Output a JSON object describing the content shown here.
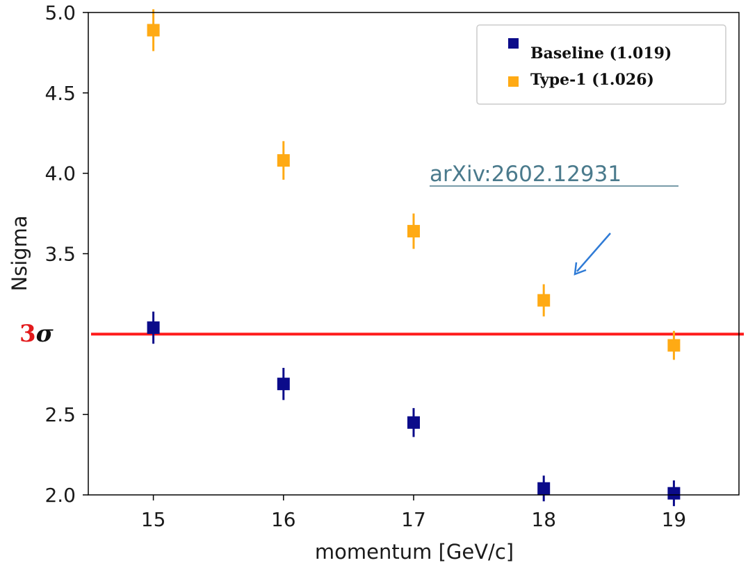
{
  "chart_data": {
    "type": "scatter",
    "title": "",
    "xlabel": "momentum [GeV/c]",
    "ylabel": "Nsigma",
    "xlim": [
      14.5,
      19.5
    ],
    "ylim": [
      2.0,
      5.0
    ],
    "xticks": [
      15,
      16,
      17,
      18,
      19
    ],
    "yticks": [
      "2.0",
      "2.5",
      "3.5",
      "4.0",
      "4.5",
      "5.0"
    ],
    "grid": false,
    "legend_position": "top-right",
    "x": [
      15,
      16,
      17,
      18,
      19
    ],
    "series": [
      {
        "name": "Baseline (1.019)",
        "color": "#0b0b8a",
        "values": [
          3.04,
          2.69,
          2.45,
          2.04,
          2.01
        ],
        "errors": [
          0.1,
          0.1,
          0.09,
          0.08,
          0.08
        ]
      },
      {
        "name": "Type-1 (1.026)",
        "color": "#ffaa14",
        "values": [
          4.89,
          4.08,
          3.64,
          3.21,
          2.93
        ],
        "errors": [
          0.13,
          0.12,
          0.11,
          0.1,
          0.09
        ]
      }
    ],
    "threshold": {
      "value": 3.0,
      "color": "#ff1a1a",
      "label_number": "3",
      "label_symbol": "σ"
    },
    "annotation": {
      "text": "arXiv:2602.12931",
      "arrow_color": "#2f7bd6"
    }
  }
}
